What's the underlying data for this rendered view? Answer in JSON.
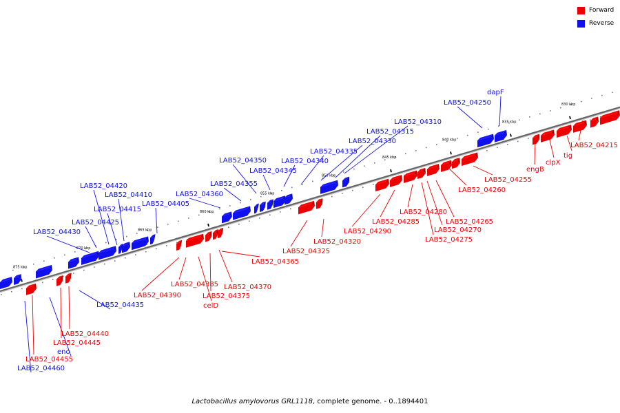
{
  "colors": {
    "forward": "#ee0000",
    "reverse": "#1010ee",
    "backbone": "#666666"
  },
  "legend": [
    {
      "label": "Forward",
      "color": "#ee0000"
    },
    {
      "label": "Reverse",
      "color": "#1010ee"
    }
  ],
  "caption": {
    "organism": "Lactobacillus amylovorus GRL1118",
    "suffix": ", complete genome. - 0..1894401"
  },
  "ticks": [
    "830 kbp",
    "835 kbp",
    "840 kbp",
    "845 kbp",
    "850 kbp",
    "855 kbp",
    "860 kbp",
    "865 kbp",
    "870 kbp",
    "875 kbp"
  ],
  "genes": [
    {
      "label": "dapF",
      "strand": "reverse"
    },
    {
      "label": "LAB52_04250",
      "strand": "reverse"
    },
    {
      "label": "LAB52_04310",
      "strand": "reverse"
    },
    {
      "label": "LAB52_04315",
      "strand": "reverse"
    },
    {
      "label": "LAB52_04330",
      "strand": "reverse"
    },
    {
      "label": "LAB52_04335",
      "strand": "reverse"
    },
    {
      "label": "LAB52_04340",
      "strand": "reverse"
    },
    {
      "label": "LAB52_04345",
      "strand": "reverse"
    },
    {
      "label": "LAB52_04350",
      "strand": "reverse"
    },
    {
      "label": "LAB52_04355",
      "strand": "reverse"
    },
    {
      "label": "LAB52_04360",
      "strand": "reverse"
    },
    {
      "label": "LAB52_04405",
      "strand": "reverse"
    },
    {
      "label": "LAB52_04410",
      "strand": "reverse"
    },
    {
      "label": "LAB52_04415",
      "strand": "reverse"
    },
    {
      "label": "LAB52_04420",
      "strand": "reverse"
    },
    {
      "label": "LAB52_04425",
      "strand": "reverse"
    },
    {
      "label": "LAB52_04430",
      "strand": "reverse"
    },
    {
      "label": "LAB52_04435",
      "strand": "reverse"
    },
    {
      "label": "eno",
      "strand": "reverse"
    },
    {
      "label": "LAB52_04460",
      "strand": "reverse"
    },
    {
      "label": "LAB52_04215",
      "strand": "forward"
    },
    {
      "label": "tig",
      "strand": "forward"
    },
    {
      "label": "clpX",
      "strand": "forward"
    },
    {
      "label": "engB",
      "strand": "forward"
    },
    {
      "label": "LAB52_04255",
      "strand": "forward"
    },
    {
      "label": "LAB52_04260",
      "strand": "forward"
    },
    {
      "label": "LAB52_04265",
      "strand": "forward"
    },
    {
      "label": "LAB52_04270",
      "strand": "forward"
    },
    {
      "label": "LAB52_04275",
      "strand": "forward"
    },
    {
      "label": "LAB52_04280",
      "strand": "forward"
    },
    {
      "label": "LAB52_04285",
      "strand": "forward"
    },
    {
      "label": "LAB52_04290",
      "strand": "forward"
    },
    {
      "label": "LAB52_04320",
      "strand": "forward"
    },
    {
      "label": "LAB52_04325",
      "strand": "forward"
    },
    {
      "label": "LAB52_04365",
      "strand": "forward"
    },
    {
      "label": "LAB52_04370",
      "strand": "forward"
    },
    {
      "label": "LAB52_04375",
      "strand": "forward"
    },
    {
      "label": "celD",
      "strand": "forward"
    },
    {
      "label": "LAB52_04385",
      "strand": "forward"
    },
    {
      "label": "LAB52_04390",
      "strand": "forward"
    },
    {
      "label": "LAB52_04440",
      "strand": "forward"
    },
    {
      "label": "LAB52_04445",
      "strand": "forward"
    },
    {
      "label": "LAB52_04455",
      "strand": "forward"
    }
  ]
}
